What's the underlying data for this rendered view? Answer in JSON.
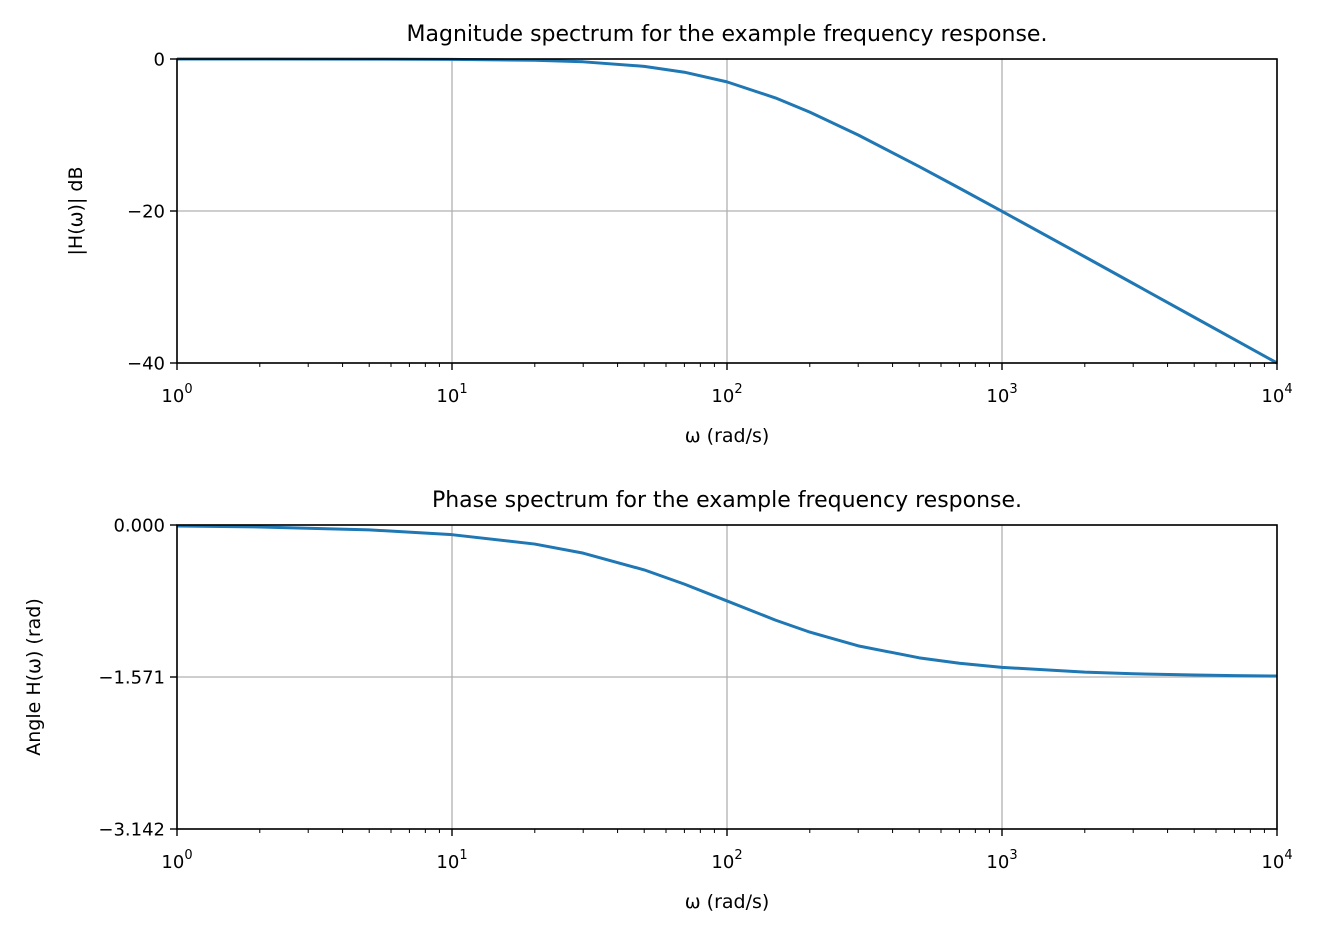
{
  "chart_data": [
    {
      "type": "line",
      "title": "Magnitude spectrum for the example frequency response.",
      "xlabel": "ω (rad/s)",
      "ylabel": "|H(ω)| dB",
      "xscale": "log",
      "xlim": [
        1,
        10000
      ],
      "ylim": [
        -40,
        0
      ],
      "grid": true,
      "x_ticks": [
        {
          "base": "10",
          "exp": "0",
          "value": 1
        },
        {
          "base": "10",
          "exp": "1",
          "value": 10
        },
        {
          "base": "10",
          "exp": "2",
          "value": 100
        },
        {
          "base": "10",
          "exp": "3",
          "value": 1000
        },
        {
          "base": "10",
          "exp": "4",
          "value": 10000
        }
      ],
      "y_ticks": [
        {
          "label": "0",
          "value": 0
        },
        {
          "label": "−20",
          "value": -20
        },
        {
          "label": "−40",
          "value": -40
        }
      ],
      "series": [
        {
          "name": "magnitude",
          "color": "#1f77b4",
          "x": [
            1,
            2,
            5,
            10,
            20,
            30,
            50,
            70,
            100,
            150,
            200,
            300,
            500,
            700,
            1000,
            2000,
            3000,
            5000,
            7000,
            10000
          ],
          "values": [
            0,
            -0.002,
            -0.011,
            -0.043,
            -0.17,
            -0.37,
            -0.97,
            -1.74,
            -3.01,
            -5.12,
            -6.99,
            -10.0,
            -14.15,
            -16.99,
            -20.04,
            -26.02,
            -29.54,
            -33.98,
            -36.9,
            -40.0
          ]
        }
      ]
    },
    {
      "type": "line",
      "title": "Phase spectrum for the example frequency response.",
      "xlabel": "ω (rad/s)",
      "ylabel": "Angle H(ω) (rad)",
      "xscale": "log",
      "xlim": [
        1,
        10000
      ],
      "ylim": [
        -3.142,
        0
      ],
      "grid": true,
      "x_ticks": [
        {
          "base": "10",
          "exp": "0",
          "value": 1
        },
        {
          "base": "10",
          "exp": "1",
          "value": 10
        },
        {
          "base": "10",
          "exp": "2",
          "value": 100
        },
        {
          "base": "10",
          "exp": "3",
          "value": 1000
        },
        {
          "base": "10",
          "exp": "4",
          "value": 10000
        }
      ],
      "y_ticks": [
        {
          "label": "0.000",
          "value": 0
        },
        {
          "label": "−1.571",
          "value": -1.571
        },
        {
          "label": "−3.142",
          "value": -3.142
        }
      ],
      "series": [
        {
          "name": "phase",
          "color": "#1f77b4",
          "x": [
            1,
            2,
            5,
            10,
            20,
            30,
            50,
            70,
            100,
            150,
            200,
            300,
            500,
            700,
            1000,
            2000,
            3000,
            5000,
            7000,
            10000
          ],
          "values": [
            -0.01,
            -0.02,
            -0.05,
            -0.1,
            -0.197,
            -0.291,
            -0.464,
            -0.611,
            -0.785,
            -0.983,
            -1.107,
            -1.249,
            -1.373,
            -1.429,
            -1.471,
            -1.521,
            -1.538,
            -1.551,
            -1.557,
            -1.561
          ]
        }
      ]
    }
  ]
}
